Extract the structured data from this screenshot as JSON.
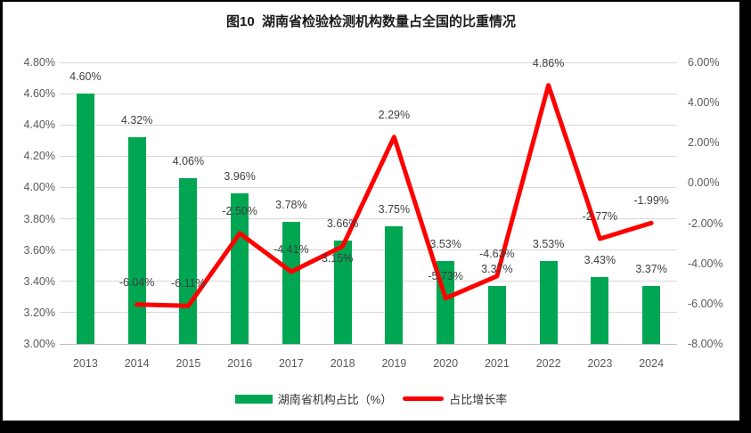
{
  "chart_data": {
    "type": "bar",
    "combo": "bar+line dual-axis",
    "title": "图10  湖南省检验检测机构数量占全国的比重情况",
    "categories": [
      "2013",
      "2014",
      "2015",
      "2016",
      "2017",
      "2018",
      "2019",
      "2020",
      "2021",
      "2022",
      "2023",
      "2024"
    ],
    "series": [
      {
        "name": "湖南省机构占比（%）",
        "kind": "bar",
        "axis": "left",
        "color": "#00A651",
        "values": [
          4.6,
          4.32,
          4.06,
          3.96,
          3.78,
          3.66,
          3.75,
          3.53,
          3.37,
          3.53,
          3.43,
          3.37
        ],
        "labels": [
          "4.60%",
          "4.32%",
          "4.06%",
          "3.96%",
          "3.78%",
          "3.66%",
          "3.75%",
          "3.53%",
          "3.37%",
          "3.53%",
          "3.43%",
          "3.37%"
        ]
      },
      {
        "name": "占比增长率",
        "kind": "line",
        "axis": "right",
        "color": "#FF0000",
        "values": [
          null,
          -6.04,
          -6.11,
          -2.5,
          -4.41,
          -3.15,
          2.29,
          -5.73,
          -4.63,
          4.86,
          -2.77,
          -1.99
        ],
        "labels": [
          null,
          "-6.04%",
          "-6.11%",
          "-2.50%",
          "-4.41%",
          "-3.15%",
          "2.29%",
          "-5.73%",
          "-4.63%",
          "4.86%",
          "-2.77%",
          "-1.99%"
        ],
        "label_below_indices": [
          5
        ]
      }
    ],
    "left_axis": {
      "min": 3.0,
      "max": 4.8,
      "ticks": [
        "4.80%",
        "4.60%",
        "4.40%",
        "4.20%",
        "4.00%",
        "3.80%",
        "3.60%",
        "3.40%",
        "3.20%",
        "3.00%"
      ]
    },
    "right_axis": {
      "min": -8.0,
      "max": 6.0,
      "ticks": [
        "6.00%",
        "4.00%",
        "2.00%",
        "0.00%",
        "-2.00%",
        "-4.00%",
        "-6.00%",
        "-8.00%"
      ]
    },
    "grid": true,
    "legend_position": "bottom",
    "legend": [
      {
        "label": "湖南省机构占比（%）",
        "swatch": "bar",
        "color": "#00A651"
      },
      {
        "label": "占比增长率",
        "swatch": "line",
        "color": "#FF0000"
      }
    ],
    "colors": {
      "gridline": "#D9D9D9",
      "axis_line": "#BFBFBF",
      "tick_text": "#595959",
      "label_text": "#3F3F3F"
    }
  }
}
